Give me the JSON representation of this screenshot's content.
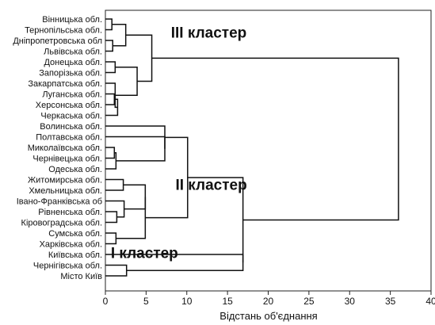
{
  "chart_data": {
    "type": "dendrogram",
    "xlabel": "Відстань об'єднання",
    "xlim": [
      0,
      40
    ],
    "xticks": [
      "0",
      "5",
      "10",
      "15",
      "20",
      "25",
      "30",
      "35",
      "40"
    ],
    "leaves": [
      "Вінницька обл.",
      "Тернопільська обл.",
      "Дніпропетровська обл",
      "Львівська обл.",
      "Донецька обл.",
      "Запорізька обл.",
      "Закарпатська обл.",
      "Луганська обл.",
      "Херсонська обл.",
      "Черкаська обл.",
      "Волинська обл.",
      "Полтавська обл.",
      "Миколаївська обл.",
      "Чернівецька обл.",
      "Одеська обл.",
      "Житомирська обл.",
      "Хмельницька обл.",
      "Івано-Франківська об",
      "Рівненська обл.",
      "Кіровоградська обл.",
      "Сумська обл.",
      "Харківська обл.",
      "Київська обл.",
      "Чернігівська обл.",
      "Місто Київ"
    ],
    "merges": [
      {
        "id": "A",
        "a": 0,
        "b": 1,
        "h": 0.8
      },
      {
        "id": "B",
        "a": 2,
        "b": 3,
        "h": 0.9
      },
      {
        "id": "C",
        "a": "A",
        "b": "B",
        "h": 2.5
      },
      {
        "id": "E",
        "a": 4,
        "b": 5,
        "h": 1.2
      },
      {
        "id": "F",
        "a": 7,
        "b": 8,
        "h": 1.1
      },
      {
        "id": "G",
        "a": "F",
        "b": 9,
        "h": 1.5
      },
      {
        "id": "H",
        "a": 6,
        "b": "G",
        "h": 1.2
      },
      {
        "id": "I",
        "a": "E",
        "b": "H",
        "h": 3.9
      },
      {
        "id": "J",
        "a": "C",
        "b": "I",
        "h": 5.7
      },
      {
        "id": "K",
        "a": 12,
        "b": 13,
        "h": 1.1
      },
      {
        "id": "L",
        "a": "K",
        "b": 14,
        "h": 1.3
      },
      {
        "id": "M",
        "a": 11,
        "b": "L",
        "h": 7.3
      },
      {
        "id": "N",
        "a": 10,
        "b": "M",
        "h": 7.3
      },
      {
        "id": "O",
        "a": 15,
        "b": 16,
        "h": 2.2
      },
      {
        "id": "P",
        "a": 18,
        "b": 19,
        "h": 1.4
      },
      {
        "id": "Q",
        "a": 17,
        "b": "P",
        "h": 2.3
      },
      {
        "id": "R",
        "a": "O",
        "b": "Q",
        "h": 4.9
      },
      {
        "id": "S",
        "a": 20,
        "b": 21,
        "h": 1.3
      },
      {
        "id": "T",
        "a": "R",
        "b": "S",
        "h": 4.9
      },
      {
        "id": "U",
        "a": "N",
        "b": "T",
        "h": 10.1
      },
      {
        "id": "V",
        "a": 23,
        "b": 24,
        "h": 2.6
      },
      {
        "id": "W",
        "a": 22,
        "b": "V",
        "h": 16.9
      },
      {
        "id": "X",
        "a": "U",
        "b": "W",
        "h": 16.9
      },
      {
        "id": "Y",
        "a": "J",
        "b": "X",
        "h": 36.0
      }
    ],
    "annotations": [
      {
        "text": "III кластер",
        "x": 12.7,
        "y_leaf": 1.3
      },
      {
        "text": "II кластер",
        "x": 13.0,
        "y_leaf": 15.5
      },
      {
        "text": "I кластер",
        "x": 4.8,
        "y_leaf": 21.9
      }
    ]
  }
}
